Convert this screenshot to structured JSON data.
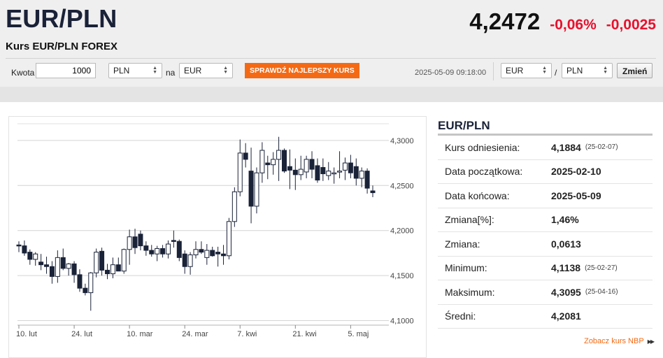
{
  "header": {
    "pair": "EUR/PLN",
    "subtitle": "Kurs EUR/PLN FOREX",
    "price": "4,2472",
    "change_pct": "-0,06%",
    "change_abs": "-0,0025"
  },
  "converter": {
    "amount_label": "Kwota",
    "amount_value": "1000",
    "from_currency": "PLN",
    "to_label": "na",
    "to_currency": "EUR",
    "best_rate_button": "SPRAWDŹ NAJLEPSZY KURS",
    "timestamp": "2025-05-09 09:18:00",
    "pair_base": "EUR",
    "pair_separator": "/",
    "pair_quote": "PLN",
    "change_button": "Zmień"
  },
  "chart_data": {
    "type": "candlestick",
    "ylim": [
      4.095,
      4.3185
    ],
    "y_ticks": [
      "4,3000",
      "4,2500",
      "4,2000",
      "4,1500",
      "4,1000"
    ],
    "y_tick_values": [
      4.3,
      4.25,
      4.2,
      4.15,
      4.1
    ],
    "x_ticks": [
      "10. lut",
      "24. lut",
      "10. mar",
      "24. mar",
      "7. kwi",
      "21. kwi",
      "5. maj"
    ],
    "x_tick_index": [
      0,
      10,
      20,
      30,
      40,
      50,
      60
    ],
    "candles": [
      {
        "o": 4.184,
        "h": 4.188,
        "l": 4.176,
        "c": 4.183
      },
      {
        "o": 4.183,
        "h": 4.189,
        "l": 4.172,
        "c": 4.175
      },
      {
        "o": 4.176,
        "h": 4.179,
        "l": 4.162,
        "c": 4.168
      },
      {
        "o": 4.168,
        "h": 4.176,
        "l": 4.161,
        "c": 4.174
      },
      {
        "o": 4.165,
        "h": 4.174,
        "l": 4.156,
        "c": 4.162
      },
      {
        "o": 4.162,
        "h": 4.171,
        "l": 4.152,
        "c": 4.16
      },
      {
        "o": 4.16,
        "h": 4.166,
        "l": 4.141,
        "c": 4.149
      },
      {
        "o": 4.149,
        "h": 4.178,
        "l": 4.142,
        "c": 4.17
      },
      {
        "o": 4.17,
        "h": 4.18,
        "l": 4.156,
        "c": 4.158
      },
      {
        "o": 4.158,
        "h": 4.164,
        "l": 4.15,
        "c": 4.163
      },
      {
        "o": 4.163,
        "h": 4.166,
        "l": 4.142,
        "c": 4.151
      },
      {
        "o": 4.151,
        "h": 4.157,
        "l": 4.132,
        "c": 4.136
      },
      {
        "o": 4.136,
        "h": 4.141,
        "l": 4.128,
        "c": 4.131
      },
      {
        "o": 4.131,
        "h": 4.154,
        "l": 4.111,
        "c": 4.153
      },
      {
        "o": 4.153,
        "h": 4.18,
        "l": 4.148,
        "c": 4.176
      },
      {
        "o": 4.177,
        "h": 4.181,
        "l": 4.15,
        "c": 4.156
      },
      {
        "o": 4.156,
        "h": 4.163,
        "l": 4.146,
        "c": 4.152
      },
      {
        "o": 4.152,
        "h": 4.17,
        "l": 4.147,
        "c": 4.162
      },
      {
        "o": 4.162,
        "h": 4.17,
        "l": 4.155,
        "c": 4.155
      },
      {
        "o": 4.155,
        "h": 4.18,
        "l": 4.152,
        "c": 4.179
      },
      {
        "o": 4.179,
        "h": 4.201,
        "l": 4.162,
        "c": 4.193
      },
      {
        "o": 4.193,
        "h": 4.202,
        "l": 4.174,
        "c": 4.181
      },
      {
        "o": 4.196,
        "h": 4.2,
        "l": 4.178,
        "c": 4.183
      },
      {
        "o": 4.183,
        "h": 4.188,
        "l": 4.172,
        "c": 4.178
      },
      {
        "o": 4.178,
        "h": 4.184,
        "l": 4.171,
        "c": 4.174
      },
      {
        "o": 4.174,
        "h": 4.183,
        "l": 4.166,
        "c": 4.18
      },
      {
        "o": 4.18,
        "h": 4.184,
        "l": 4.17,
        "c": 4.174
      },
      {
        "o": 4.174,
        "h": 4.189,
        "l": 4.169,
        "c": 4.185
      },
      {
        "o": 4.189,
        "h": 4.2,
        "l": 4.181,
        "c": 4.188
      },
      {
        "o": 4.188,
        "h": 4.19,
        "l": 4.166,
        "c": 4.17
      },
      {
        "o": 4.174,
        "h": 4.178,
        "l": 4.152,
        "c": 4.16
      },
      {
        "o": 4.16,
        "h": 4.176,
        "l": 4.151,
        "c": 4.173
      },
      {
        "o": 4.173,
        "h": 4.188,
        "l": 4.169,
        "c": 4.179
      },
      {
        "o": 4.179,
        "h": 4.188,
        "l": 4.174,
        "c": 4.176
      },
      {
        "o": 4.17,
        "h": 4.185,
        "l": 4.162,
        "c": 4.178
      },
      {
        "o": 4.178,
        "h": 4.182,
        "l": 4.171,
        "c": 4.172
      },
      {
        "o": 4.176,
        "h": 4.182,
        "l": 4.16,
        "c": 4.174
      },
      {
        "o": 4.174,
        "h": 4.184,
        "l": 4.162,
        "c": 4.172
      },
      {
        "o": 4.172,
        "h": 4.214,
        "l": 4.168,
        "c": 4.21
      },
      {
        "o": 4.21,
        "h": 4.248,
        "l": 4.204,
        "c": 4.243
      },
      {
        "o": 4.243,
        "h": 4.301,
        "l": 4.238,
        "c": 4.286
      },
      {
        "o": 4.286,
        "h": 4.297,
        "l": 4.27,
        "c": 4.279
      },
      {
        "o": 4.266,
        "h": 4.292,
        "l": 4.208,
        "c": 4.227
      },
      {
        "o": 4.227,
        "h": 4.27,
        "l": 4.219,
        "c": 4.264
      },
      {
        "o": 4.264,
        "h": 4.298,
        "l": 4.253,
        "c": 4.289
      },
      {
        "o": 4.275,
        "h": 4.283,
        "l": 4.257,
        "c": 4.273
      },
      {
        "o": 4.273,
        "h": 4.287,
        "l": 4.262,
        "c": 4.279
      },
      {
        "o": 4.279,
        "h": 4.304,
        "l": 4.255,
        "c": 4.289
      },
      {
        "o": 4.289,
        "h": 4.291,
        "l": 4.264,
        "c": 4.266
      },
      {
        "o": 4.271,
        "h": 4.29,
        "l": 4.246,
        "c": 4.267
      },
      {
        "o": 4.267,
        "h": 4.28,
        "l": 4.245,
        "c": 4.262
      },
      {
        "o": 4.262,
        "h": 4.283,
        "l": 4.256,
        "c": 4.268
      },
      {
        "o": 4.265,
        "h": 4.283,
        "l": 4.258,
        "c": 4.279
      },
      {
        "o": 4.279,
        "h": 4.288,
        "l": 4.258,
        "c": 4.268
      },
      {
        "o": 4.272,
        "h": 4.28,
        "l": 4.253,
        "c": 4.256
      },
      {
        "o": 4.27,
        "h": 4.28,
        "l": 4.255,
        "c": 4.263
      },
      {
        "o": 4.261,
        "h": 4.276,
        "l": 4.256,
        "c": 4.266
      },
      {
        "o": 4.263,
        "h": 4.27,
        "l": 4.252,
        "c": 4.264
      },
      {
        "o": 4.265,
        "h": 4.288,
        "l": 4.258,
        "c": 4.266
      },
      {
        "o": 4.267,
        "h": 4.281,
        "l": 4.256,
        "c": 4.275
      },
      {
        "o": 4.275,
        "h": 4.284,
        "l": 4.258,
        "c": 4.264
      },
      {
        "o": 4.271,
        "h": 4.28,
        "l": 4.25,
        "c": 4.258
      },
      {
        "o": 4.258,
        "h": 4.27,
        "l": 4.248,
        "c": 4.266
      },
      {
        "o": 4.266,
        "h": 4.269,
        "l": 4.241,
        "c": 4.247
      },
      {
        "o": 4.244,
        "h": 4.25,
        "l": 4.237,
        "c": 4.242
      }
    ]
  },
  "side": {
    "title": "EUR/PLN",
    "rows": [
      {
        "label": "Kurs odniesienia:",
        "value": "4,1884",
        "date": "(25-02-07)"
      },
      {
        "label": "Data początkowa:",
        "value": "2025-02-10",
        "date": ""
      },
      {
        "label": "Data końcowa:",
        "value": "2025-05-09",
        "date": ""
      },
      {
        "label": "Zmiana[%]:",
        "value": "1,46%",
        "date": ""
      },
      {
        "label": "Zmiana:",
        "value": "0,0613",
        "date": ""
      },
      {
        "label": "Minimum:",
        "value": "4,1138",
        "date": "(25-02-27)"
      },
      {
        "label": "Maksimum:",
        "value": "4,3095",
        "date": "(25-04-16)"
      },
      {
        "label": "Średni:",
        "value": "4,2081",
        "date": ""
      }
    ],
    "more_link": "Zobacz kurs NBP"
  },
  "colors": {
    "bull": "#ffffff",
    "bear": "#1a2238",
    "negative": "#e8112d",
    "accent": "#f46a14"
  }
}
